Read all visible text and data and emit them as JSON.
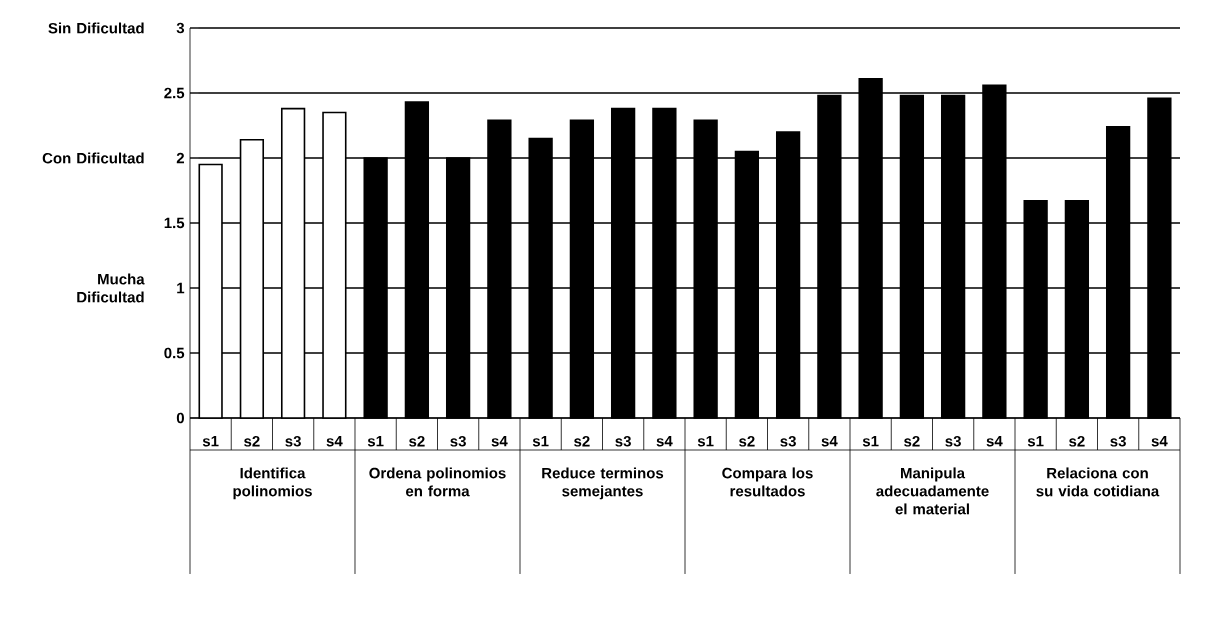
{
  "chart_data": {
    "type": "bar",
    "categories": [
      "s1",
      "s2",
      "s3",
      "s4",
      "s1",
      "s2",
      "s3",
      "s4",
      "s1",
      "s2",
      "s3",
      "s4",
      "s1",
      "s2",
      "s3",
      "s4",
      "s1",
      "s2",
      "s3",
      "s4",
      "s1",
      "s2",
      "s3",
      "s4"
    ],
    "values": [
      1.95,
      2.14,
      2.38,
      2.35,
      2.0,
      2.43,
      2.0,
      2.29,
      2.15,
      2.29,
      2.38,
      2.38,
      2.29,
      2.05,
      2.2,
      2.48,
      2.61,
      2.48,
      2.48,
      2.56,
      1.67,
      1.67,
      2.24,
      2.46
    ],
    "colors": [
      "#ffffff",
      "#ffffff",
      "#ffffff",
      "#ffffff",
      "#000000",
      "#000000",
      "#000000",
      "#000000",
      "#000000",
      "#000000",
      "#000000",
      "#000000",
      "#000000",
      "#000000",
      "#000000",
      "#000000",
      "#000000",
      "#000000",
      "#000000",
      "#000000",
      "#000000",
      "#000000",
      "#000000",
      "#000000"
    ],
    "ylim": [
      0,
      3
    ],
    "yticks": [
      0,
      0.5,
      1,
      1.5,
      2,
      2.5,
      3
    ],
    "grid": "y",
    "annotations": [
      "Sin Dificultad",
      "Con Dificultad",
      "Mucha Dificultad",
      "Identifica polinomios",
      "Ordena polinomios en forma",
      "Reduce terminos semejantes",
      "Compara los resultados",
      "Manipula adecuadamente el material",
      "Relaciona con su vida cotidiana"
    ]
  }
}
